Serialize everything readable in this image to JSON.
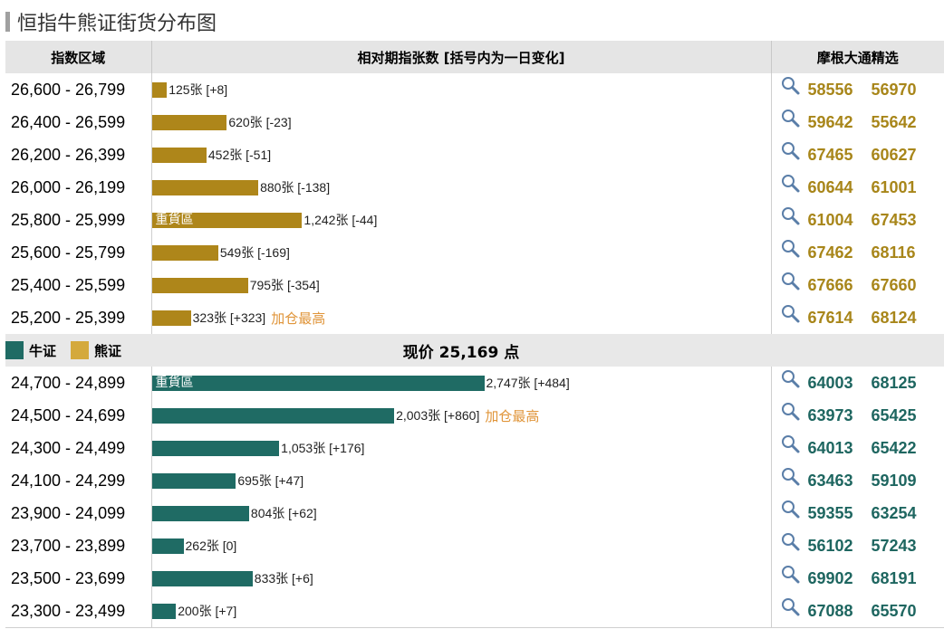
{
  "title": "恒指牛熊证街货分布图",
  "headers": {
    "range": "指数区域",
    "volume": "相对期指张数 [括号内为一日变化]",
    "picks": "摩根大通精选"
  },
  "heavy_label": "重貨區",
  "new_high_label": "加仓最高",
  "legend": {
    "bull_label": "牛证",
    "bear_label": "熊证",
    "bull_color": "#1f6b64",
    "bear_color": "#d4a93c"
  },
  "current_price": "现价 25,169 点",
  "chart_data": {
    "type": "bar",
    "orientation": "horizontal",
    "unit": "张",
    "xlim": [
      0,
      2747
    ],
    "bear_rows": [
      {
        "range": "26,600 - 26,799",
        "value": 125,
        "label": "125张 [+8]",
        "heavy": false,
        "note": "",
        "codes": [
          "58556",
          "56970"
        ]
      },
      {
        "range": "26,400 - 26,599",
        "value": 620,
        "label": "620张 [-23]",
        "heavy": false,
        "note": "",
        "codes": [
          "59642",
          "55642"
        ]
      },
      {
        "range": "26,200 - 26,399",
        "value": 452,
        "label": "452张 [-51]",
        "heavy": false,
        "note": "",
        "codes": [
          "67465",
          "60627"
        ]
      },
      {
        "range": "26,000 - 26,199",
        "value": 880,
        "label": "880张 [-138]",
        "heavy": false,
        "note": "",
        "codes": [
          "60644",
          "61001"
        ]
      },
      {
        "range": "25,800 - 25,999",
        "value": 1242,
        "label": "1,242张 [-44]",
        "heavy": true,
        "note": "",
        "codes": [
          "61004",
          "67453"
        ]
      },
      {
        "range": "25,600 - 25,799",
        "value": 549,
        "label": "549张 [-169]",
        "heavy": false,
        "note": "",
        "codes": [
          "67462",
          "68116"
        ]
      },
      {
        "range": "25,400 - 25,599",
        "value": 795,
        "label": "795张 [-354]",
        "heavy": false,
        "note": "",
        "codes": [
          "67666",
          "67660"
        ]
      },
      {
        "range": "25,200 - 25,399",
        "value": 323,
        "label": "323张 [+323]",
        "heavy": false,
        "note": "加仓最高",
        "codes": [
          "67614",
          "68124"
        ]
      }
    ],
    "bull_rows": [
      {
        "range": "24,700 - 24,899",
        "value": 2747,
        "label": "2,747张 [+484]",
        "heavy": true,
        "note": "",
        "codes": [
          "64003",
          "68125"
        ]
      },
      {
        "range": "24,500 - 24,699",
        "value": 2003,
        "label": "2,003张 [+860]",
        "heavy": false,
        "note": "加仓最高",
        "codes": [
          "63973",
          "65425"
        ]
      },
      {
        "range": "24,300 - 24,499",
        "value": 1053,
        "label": "1,053张 [+176]",
        "heavy": false,
        "note": "",
        "codes": [
          "64013",
          "65422"
        ]
      },
      {
        "range": "24,100 - 24,299",
        "value": 695,
        "label": "695张 [+47]",
        "heavy": false,
        "note": "",
        "codes": [
          "63463",
          "59109"
        ]
      },
      {
        "range": "23,900 - 24,099",
        "value": 804,
        "label": "804张 [+62]",
        "heavy": false,
        "note": "",
        "codes": [
          "59355",
          "63254"
        ]
      },
      {
        "range": "23,700 - 23,899",
        "value": 262,
        "label": "262张 [0]",
        "heavy": false,
        "note": "",
        "codes": [
          "56102",
          "57243"
        ]
      },
      {
        "range": "23,500 - 23,699",
        "value": 833,
        "label": "833张 [+6]",
        "heavy": false,
        "note": "",
        "codes": [
          "69902",
          "68191"
        ]
      },
      {
        "range": "23,300 - 23,499",
        "value": 200,
        "label": "200张 [+7]",
        "heavy": false,
        "note": "",
        "codes": [
          "67088",
          "65570"
        ]
      }
    ]
  }
}
